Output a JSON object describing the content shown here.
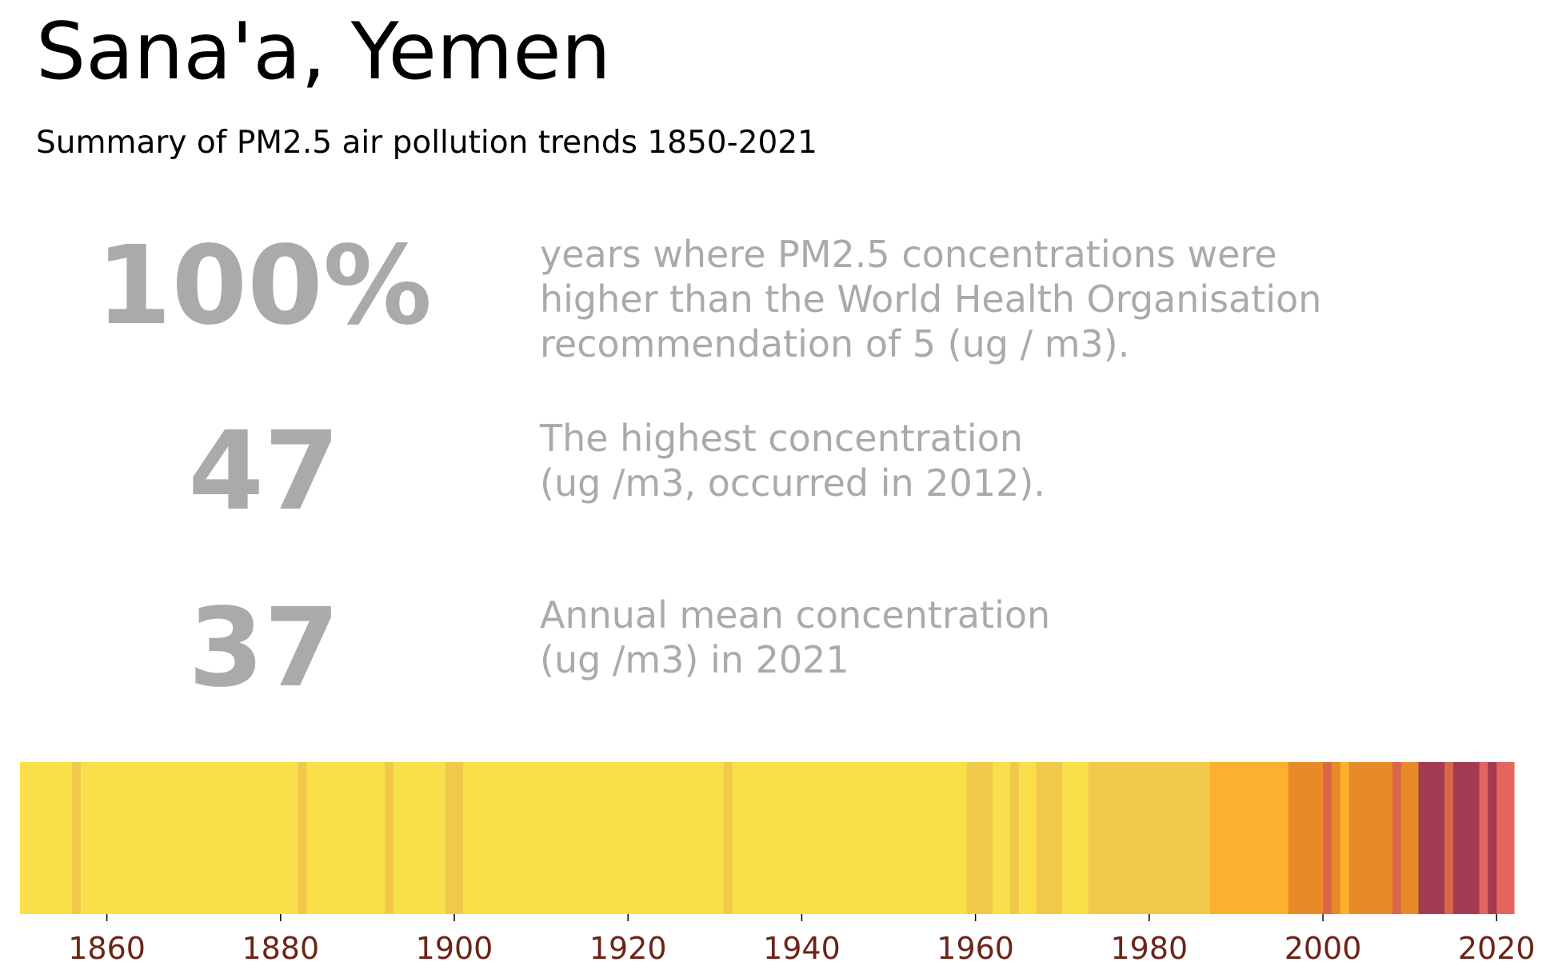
{
  "title": "Sana'a, Yemen",
  "subtitle": "Summary of PM2.5 air pollution trends 1850-2021",
  "stats": [
    {
      "value": "100%",
      "lines": [
        "years where PM2.5 concentrations were",
        "higher than the World Health Organisation",
        "recommendation of 5 (ug / m3)."
      ]
    },
    {
      "value": "47",
      "lines": [
        "The highest concentration",
        "(ug /m3, occurred in 2012)."
      ]
    },
    {
      "value": "37",
      "lines": [
        "Annual mean concentration",
        "(ug /m3) in 2021"
      ]
    }
  ],
  "colors": {
    "stat_text": "#aaaaaa",
    "tick_label": "#6b2418"
  },
  "chart_data": {
    "type": "heatmap",
    "xlim": [
      1850,
      2022
    ],
    "xticks": [
      1860,
      1880,
      1900,
      1920,
      1940,
      1960,
      1980,
      2000,
      2020
    ],
    "palette": [
      "#f9e04a",
      "#f2c84b",
      "#fbb12e",
      "#e98a29",
      "#d9664a",
      "#a33b52",
      "#e4645e"
    ],
    "segments": [
      {
        "start": 1850,
        "end": 1856,
        "level": 0
      },
      {
        "start": 1856,
        "end": 1857,
        "level": 1
      },
      {
        "start": 1857,
        "end": 1882,
        "level": 0
      },
      {
        "start": 1882,
        "end": 1883,
        "level": 1
      },
      {
        "start": 1883,
        "end": 1892,
        "level": 0
      },
      {
        "start": 1892,
        "end": 1893,
        "level": 1
      },
      {
        "start": 1893,
        "end": 1899,
        "level": 0
      },
      {
        "start": 1899,
        "end": 1901,
        "level": 1
      },
      {
        "start": 1901,
        "end": 1931,
        "level": 0
      },
      {
        "start": 1931,
        "end": 1932,
        "level": 1
      },
      {
        "start": 1932,
        "end": 1959,
        "level": 0
      },
      {
        "start": 1959,
        "end": 1962,
        "level": 1
      },
      {
        "start": 1962,
        "end": 1964,
        "level": 0
      },
      {
        "start": 1964,
        "end": 1965,
        "level": 1
      },
      {
        "start": 1965,
        "end": 1967,
        "level": 0
      },
      {
        "start": 1967,
        "end": 1970,
        "level": 1
      },
      {
        "start": 1970,
        "end": 1973,
        "level": 0
      },
      {
        "start": 1973,
        "end": 1987,
        "level": 1
      },
      {
        "start": 1987,
        "end": 1996,
        "level": 2
      },
      {
        "start": 1996,
        "end": 2000,
        "level": 3
      },
      {
        "start": 2000,
        "end": 2001,
        "level": 4
      },
      {
        "start": 2001,
        "end": 2002,
        "level": 3
      },
      {
        "start": 2002,
        "end": 2003,
        "level": 2
      },
      {
        "start": 2003,
        "end": 2008,
        "level": 3
      },
      {
        "start": 2008,
        "end": 2009,
        "level": 4
      },
      {
        "start": 2009,
        "end": 2011,
        "level": 3
      },
      {
        "start": 2011,
        "end": 2014,
        "level": 5
      },
      {
        "start": 2014,
        "end": 2015,
        "level": 4
      },
      {
        "start": 2015,
        "end": 2018,
        "level": 5
      },
      {
        "start": 2018,
        "end": 2019,
        "level": 6
      },
      {
        "start": 2019,
        "end": 2020,
        "level": 5
      },
      {
        "start": 2020,
        "end": 2022,
        "level": 6
      }
    ]
  }
}
